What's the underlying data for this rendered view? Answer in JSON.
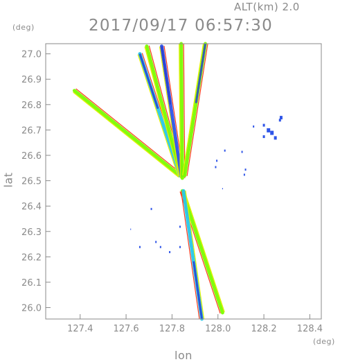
{
  "chart_data": {
    "type": "scatter",
    "alt_label": "ALT(km)  2.0",
    "timestamp": "2017/09/17 06:57:30",
    "xlabel": "lon",
    "ylabel": "lat",
    "x_unit": "(deg)",
    "y_unit": "(deg)",
    "xlim": [
      127.25,
      128.45
    ],
    "ylim": [
      25.955,
      27.04
    ],
    "x_ticks": [
      "127.4",
      "127.6",
      "127.8",
      "128.0",
      "128.2",
      "128.4"
    ],
    "y_ticks": [
      "26.0",
      "26.1",
      "26.2",
      "26.3",
      "26.4",
      "26.5",
      "26.6",
      "26.7",
      "26.8",
      "26.9",
      "27.0"
    ],
    "radar_center": [
      127.84,
      26.5
    ],
    "colors": {
      "green": "#7cfc00",
      "light_green": "#c8f04a",
      "cyan": "#29c7e8",
      "blue": "#2f55e8",
      "dark_blue": "#2a3fd0",
      "red": "#ff3b1f",
      "orange": "#ff8a00",
      "yellow": "#e8f000"
    },
    "beams": [
      {
        "from": [
          127.835,
          26.52
        ],
        "to": [
          127.375,
          26.855
        ],
        "color": "#7cfc00"
      },
      {
        "from": [
          127.835,
          26.52
        ],
        "to": [
          127.66,
          27.0
        ],
        "color": "#29c7e8"
      },
      {
        "from": [
          127.84,
          26.52
        ],
        "to": [
          127.69,
          27.03
        ],
        "color": "#7cfc00"
      },
      {
        "from": [
          127.84,
          26.52
        ],
        "to": [
          127.755,
          27.03
        ],
        "color": "#2f55e8"
      },
      {
        "from": [
          127.845,
          26.51
        ],
        "to": [
          127.84,
          27.04
        ],
        "color": "#7cfc00"
      },
      {
        "from": [
          127.855,
          26.52
        ],
        "to": [
          127.945,
          27.04
        ],
        "color": "#7cfc00"
      },
      {
        "from": [
          127.845,
          26.46
        ],
        "to": [
          128.02,
          25.98
        ],
        "color": "#7cfc00"
      },
      {
        "from": [
          127.85,
          26.46
        ],
        "to": [
          127.93,
          25.955
        ],
        "color": "#29c7e8"
      }
    ],
    "echoes": [
      [
        128.275,
        26.75,
        4
      ],
      [
        128.27,
        26.74,
        3
      ],
      [
        128.2,
        26.72,
        3
      ],
      [
        128.22,
        26.7,
        5
      ],
      [
        128.235,
        26.69,
        5
      ],
      [
        128.25,
        26.67,
        4
      ],
      [
        128.2,
        26.675,
        3
      ],
      [
        128.155,
        26.715,
        2
      ],
      [
        128.03,
        26.62,
        2
      ],
      [
        128.105,
        26.615,
        2
      ],
      [
        127.995,
        26.58,
        2
      ],
      [
        127.99,
        26.555,
        2
      ],
      [
        128.115,
        26.525,
        2
      ],
      [
        128.12,
        26.545,
        2
      ],
      [
        127.71,
        26.39,
        2
      ],
      [
        127.62,
        26.31,
        1
      ],
      [
        127.835,
        26.32,
        2
      ],
      [
        127.66,
        26.24,
        2
      ],
      [
        127.73,
        26.26,
        2
      ],
      [
        127.75,
        26.24,
        2
      ],
      [
        127.79,
        26.22,
        2
      ],
      [
        127.835,
        26.24,
        2
      ],
      [
        128.02,
        26.47,
        1
      ]
    ]
  }
}
